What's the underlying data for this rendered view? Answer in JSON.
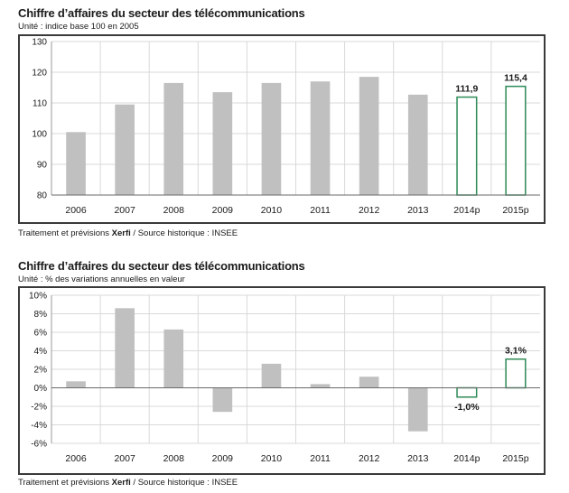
{
  "charts": [
    {
      "title": "Chiffre d’affaires du secteur des télécommunications",
      "unit": "Unité : indice base 100 en 2005",
      "source_prefix": "Traitement et prévisions ",
      "source_brand": "Xerfi",
      "source_suffix": " / Source historique : INSEE"
    },
    {
      "title": "Chiffre d’affaires du secteur des télécommunications",
      "unit": "Unité : % des variations annuelles en valeur",
      "source_prefix": "Traitement et prévisions ",
      "source_brand": "Xerfi",
      "source_suffix": " / Source historique : INSEE"
    }
  ],
  "colors": {
    "historic": "#c0c0c0",
    "forecast_stroke": "#2e8b57",
    "forecast_fill": "#ffffff",
    "grid": "#d9d9d9"
  },
  "chart_data": [
    {
      "type": "bar",
      "title": "Chiffre d’affaires du secteur des télécommunications",
      "ylabel": "Unité : indice base 100 en 2005",
      "categories": [
        "2006",
        "2007",
        "2008",
        "2009",
        "2010",
        "2011",
        "2012",
        "2013",
        "2014p",
        "2015p"
      ],
      "values": [
        100.5,
        109.5,
        116.5,
        113.5,
        116.5,
        117,
        118.5,
        112.7,
        111.9,
        115.4
      ],
      "forecast": [
        false,
        false,
        false,
        false,
        false,
        false,
        false,
        false,
        true,
        true
      ],
      "data_labels": [
        "",
        "",
        "",
        "",
        "",
        "",
        "",
        "",
        "111,9",
        "115,4"
      ],
      "ylim": [
        80,
        130
      ],
      "yticks": [
        80,
        90,
        100,
        110,
        120,
        130
      ],
      "ytick_labels": [
        "80",
        "90",
        "100",
        "110",
        "120",
        "130"
      ],
      "grid": true
    },
    {
      "type": "bar",
      "title": "Chiffre d’affaires du secteur des télécommunications",
      "ylabel": "Unité : % des variations annuelles en valeur",
      "categories": [
        "2006",
        "2007",
        "2008",
        "2009",
        "2010",
        "2011",
        "2012",
        "2013",
        "2014p",
        "2015p"
      ],
      "values": [
        0.7,
        8.6,
        6.3,
        -2.6,
        2.6,
        0.4,
        1.2,
        -4.7,
        -1.0,
        3.1
      ],
      "forecast": [
        false,
        false,
        false,
        false,
        false,
        false,
        false,
        false,
        true,
        true
      ],
      "data_labels": [
        "",
        "",
        "",
        "",
        "",
        "",
        "",
        "",
        "-1,0%",
        "3,1%"
      ],
      "ylim": [
        -6,
        10
      ],
      "yticks": [
        -6,
        -4,
        -2,
        0,
        2,
        4,
        6,
        8,
        10
      ],
      "ytick_labels": [
        "-6%",
        "-4%",
        "-2%",
        "0%",
        "2%",
        "4%",
        "6%",
        "8%",
        "10%"
      ],
      "grid": true
    }
  ]
}
